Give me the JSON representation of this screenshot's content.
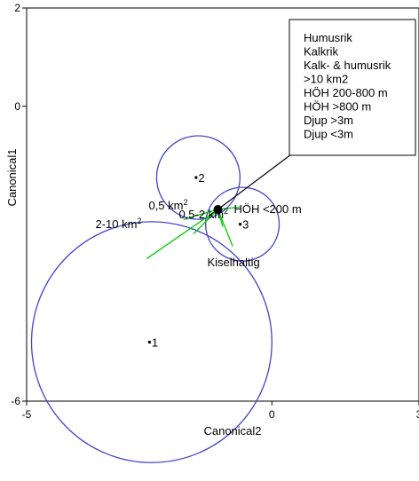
{
  "chart_data": {
    "type": "scatter",
    "xlabel": "Canonical2",
    "ylabel": "Canonical1",
    "xlim": [
      -5,
      3
    ],
    "ylim": [
      -6,
      2
    ],
    "x_ticks": [
      "-5",
      "0",
      "3"
    ],
    "y_ticks": [
      "2",
      "0",
      "-6"
    ],
    "groups": [
      {
        "label": "1",
        "x": -2.45,
        "y": -4.8,
        "radius": 2.45
      },
      {
        "label": "2",
        "x": -1.5,
        "y": -1.45,
        "radius": 0.85
      },
      {
        "label": "3",
        "x": -0.6,
        "y": -2.4,
        "radius": 0.75
      }
    ],
    "center_point": {
      "x": -1.1,
      "y": -2.1
    },
    "vectors": [
      {
        "label": "HÖH <200 m",
        "x": -0.65,
        "y": -2.05
      },
      {
        "label": "0,5 km²",
        "x": -1.8,
        "y": -2.3
      },
      {
        "label": "0,5-2 km²",
        "x": -1.6,
        "y": -2.6
      },
      {
        "label": "2-10 km²",
        "x": -2.55,
        "y": -3.1
      },
      {
        "label": "Kiselhaltig",
        "x": -0.8,
        "y": -2.85
      },
      {
        "label": "",
        "x": -1.0,
        "y": -2.45
      }
    ],
    "legend": {
      "position": "top-right",
      "items": [
        "Humusrik",
        "Kalkrik",
        "Kalk- & humusrik",
        ">10 km2",
        "HÖH 200-800 m",
        "HÖH >800 m",
        "Djup >3m",
        "Djup <3m"
      ]
    },
    "colors": {
      "circle": "#4444cc",
      "vector": "#00cc00",
      "point": "#000000"
    },
    "grid": false
  }
}
